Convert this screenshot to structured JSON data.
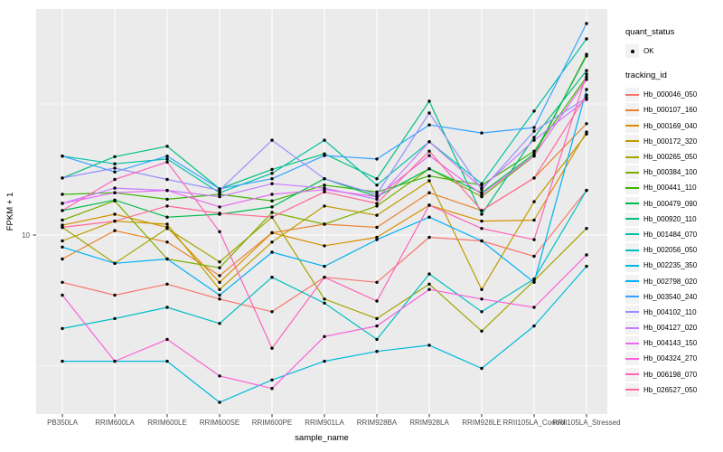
{
  "axes": {
    "x_label": "sample_name",
    "y_label": "FPKM + 1",
    "y_tick": "10"
  },
  "legend": {
    "quant_title": "quant_status",
    "quant_items": [
      "OK"
    ],
    "tracking_title": "tracking_id"
  },
  "chart_data": {
    "type": "line",
    "title": "",
    "xlabel": "sample_name",
    "ylabel": "FPKM + 1",
    "y_scale": "log10",
    "y_axis_ticks": [
      10
    ],
    "y_minor_ticks": [
      3.1623,
      31.623
    ],
    "ylim": [
      2.1,
      73
    ],
    "grid": "on",
    "legend_position": "right",
    "panel_bg": "#EBEBEB",
    "grid_color": "#FFFFFF",
    "point_color": "#000000",
    "quant_status_point_label": "OK",
    "categories": [
      "PB350LA",
      "RRIM600LA",
      "RRIM600LE",
      "RRIM600SE",
      "RRIM600PE",
      "RRIM901LA",
      "RRIM928BA",
      "RRIM928LA",
      "RRIM928LE",
      "RRII105LA_Control",
      "RRII105LA_Stressed"
    ],
    "series": [
      {
        "name": "Hb_000046_050",
        "color": "#F8766D",
        "values": [
          6.6,
          5.9,
          6.5,
          5.7,
          5.1,
          6.9,
          6.6,
          9.8,
          9.5,
          8.3,
          14.8
        ]
      },
      {
        "name": "Hb_000107_160",
        "color": "#EA8331",
        "values": [
          8.1,
          10.4,
          9.4,
          7.0,
          10.2,
          11.0,
          10.7,
          14.5,
          12.4,
          16.5,
          26.6
        ]
      },
      {
        "name": "Hb_000169_040",
        "color": "#D89000",
        "values": [
          10.9,
          12.0,
          10.7,
          6.6,
          10.2,
          9.1,
          9.8,
          13.0,
          11.3,
          11.4,
          24.7
        ]
      },
      {
        "name": "Hb_000172_320",
        "color": "#C09B00",
        "values": [
          9.5,
          11.3,
          11.0,
          6.2,
          9.4,
          12.9,
          11.9,
          16.1,
          6.2,
          13.4,
          24.3
        ]
      },
      {
        "name": "Hb_000265_050",
        "color": "#A3A500",
        "values": [
          10.7,
          7.8,
          10.6,
          7.9,
          11.7,
          5.7,
          4.8,
          6.5,
          4.3,
          6.7,
          10.6
        ]
      },
      {
        "name": "Hb_000384_100",
        "color": "#7CAE00",
        "values": [
          11.4,
          13.5,
          8.1,
          7.5,
          12.2,
          11.0,
          12.9,
          17.9,
          14.0,
          20.0,
          48.9
        ]
      },
      {
        "name": "Hb_000441_110",
        "color": "#39B600",
        "values": [
          14.3,
          14.5,
          13.7,
          14.3,
          13.5,
          15.5,
          14.6,
          16.8,
          15.5,
          20.9,
          40.1
        ]
      },
      {
        "name": "Hb_000479_090",
        "color": "#00BB4E",
        "values": [
          12.4,
          13.6,
          11.7,
          12.0,
          12.8,
          16.4,
          14.0,
          17.9,
          14.5,
          20.4,
          48.2
        ]
      },
      {
        "name": "Hb_000920_110",
        "color": "#00BF7D",
        "values": [
          16.5,
          19.9,
          21.8,
          15.0,
          17.8,
          20.4,
          16.4,
          32.4,
          12.0,
          23.6,
          42.4
        ]
      },
      {
        "name": "Hb_001484_070",
        "color": "#00C1A3",
        "values": [
          20.0,
          18.7,
          19.5,
          14.5,
          17.2,
          23.0,
          15.5,
          22.7,
          15.7,
          29.7,
          56.0
        ]
      },
      {
        "name": "Hb_002056_050",
        "color": "#00BFC4",
        "values": [
          4.4,
          4.8,
          5.3,
          4.6,
          6.9,
          5.5,
          4.0,
          7.1,
          5.1,
          6.8,
          14.8
        ]
      },
      {
        "name": "Hb_002235_350",
        "color": "#00BAE0",
        "values": [
          3.3,
          3.3,
          3.3,
          2.3,
          2.8,
          3.3,
          3.6,
          3.8,
          3.1,
          4.5,
          7.6
        ]
      },
      {
        "name": "Hb_002798_020",
        "color": "#00B0F6",
        "values": [
          9.0,
          7.8,
          8.1,
          5.9,
          8.6,
          7.6,
          9.6,
          11.7,
          9.5,
          6.6,
          35.9
        ]
      },
      {
        "name": "Hb_003540_240",
        "color": "#35A2FF",
        "values": [
          20.0,
          17.4,
          20.0,
          15.0,
          16.4,
          20.1,
          19.5,
          26.3,
          24.5,
          25.7,
          64.1
        ]
      },
      {
        "name": "Hb_004102_110",
        "color": "#9590FF",
        "values": [
          16.5,
          18.0,
          16.3,
          14.8,
          23.0,
          16.4,
          14.3,
          29.2,
          14.9,
          24.9,
          33.4
        ]
      },
      {
        "name": "Hb_004127_020",
        "color": "#C77CFF",
        "values": [
          13.2,
          15.1,
          14.8,
          14.0,
          15.7,
          15.1,
          13.7,
          22.7,
          15.1,
          23.0,
          32.9
        ]
      },
      {
        "name": "Hb_004143_150",
        "color": "#E76BF3",
        "values": [
          13.2,
          14.5,
          14.8,
          12.8,
          14.3,
          14.9,
          14.0,
          20.1,
          14.3,
          20.1,
          39.2
        ]
      },
      {
        "name": "Hb_004324_270",
        "color": "#FA62DB",
        "values": [
          5.9,
          3.3,
          4.0,
          2.9,
          2.6,
          4.1,
          4.5,
          6.2,
          5.7,
          5.3,
          8.4
        ]
      },
      {
        "name": "Hb_006198_070",
        "color": "#FF62BC",
        "values": [
          12.4,
          16.3,
          19.0,
          10.3,
          3.7,
          6.9,
          5.6,
          13.0,
          10.6,
          9.6,
          41.1
        ]
      },
      {
        "name": "Hb_026527_050",
        "color": "#FF6A98",
        "values": [
          10.7,
          11.3,
          12.9,
          12.1,
          11.7,
          14.6,
          13.2,
          20.9,
          12.4,
          16.5,
          34.2
        ]
      }
    ]
  }
}
